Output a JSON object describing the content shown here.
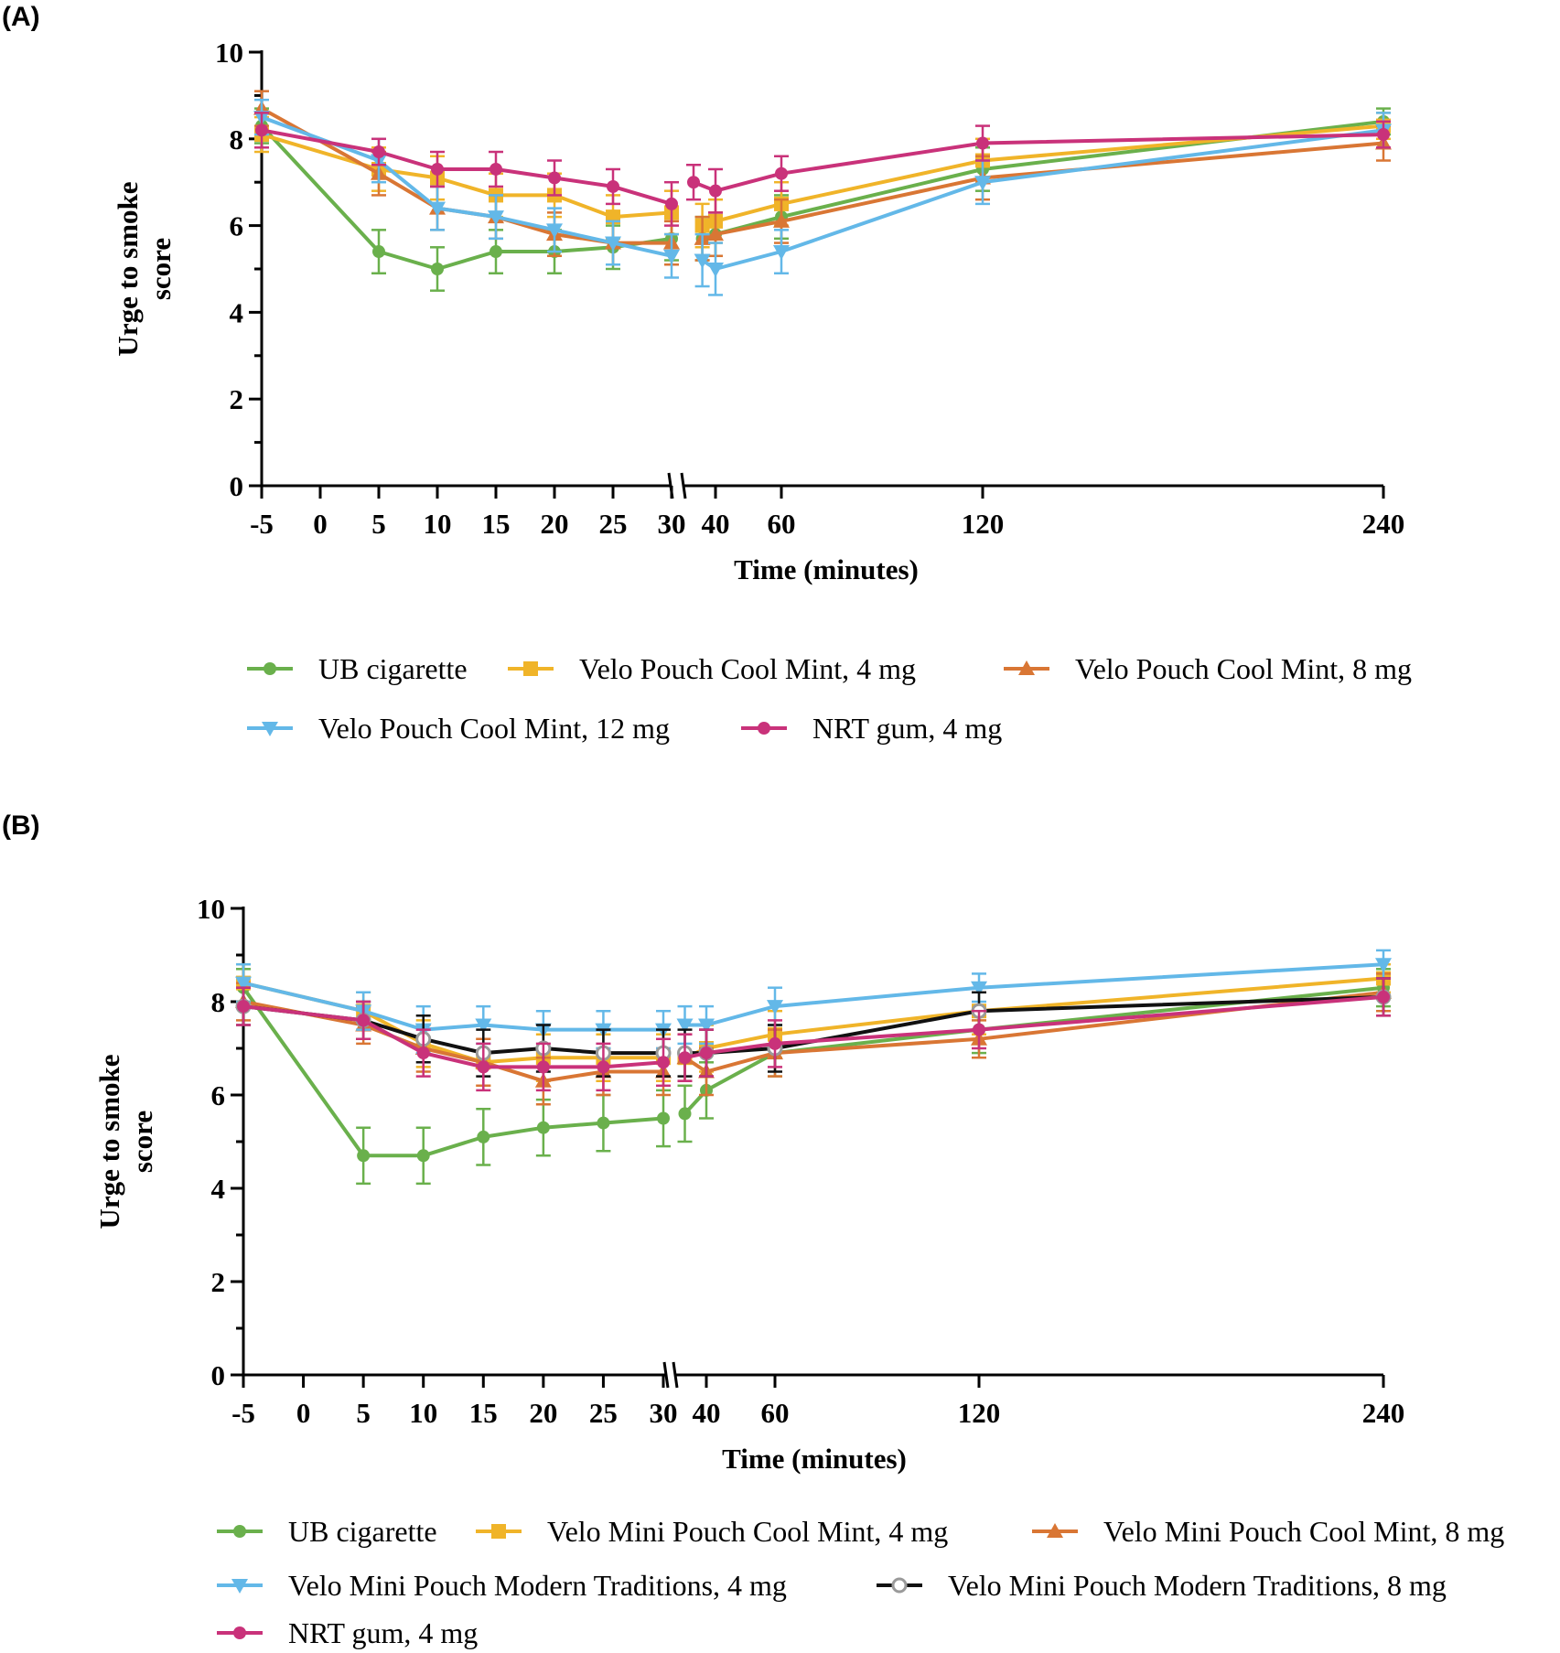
{
  "chart_data": [
    {
      "panel_label": "(A)",
      "type": "line",
      "xlabel": "Time (minutes)",
      "ylabel_lines": [
        "Urge to smoke",
        "score"
      ],
      "ylim": [
        0,
        10
      ],
      "y_ticks": [
        0,
        2,
        4,
        6,
        8,
        10
      ],
      "x_ticks": [
        -5,
        0,
        5,
        10,
        15,
        20,
        25,
        30,
        40,
        60,
        120,
        240
      ],
      "x_ticks_labels": [
        "-5",
        "0",
        "5",
        "10",
        "15",
        "20",
        "25",
        "30",
        "40",
        "60",
        "120",
        "240"
      ],
      "x_axis_break": "between 30 and 40",
      "x_data": [
        -5,
        5,
        10,
        15,
        20,
        25,
        30,
        35,
        37,
        40,
        60,
        120,
        240
      ],
      "series": [
        {
          "name": "UB cigarette",
          "color": "#6ab04c",
          "marker": "circle",
          "values": [
            8.3,
            5.4,
            5.0,
            5.4,
            5.4,
            5.5,
            5.7,
            null,
            5.7,
            5.8,
            6.2,
            7.3,
            8.4
          ],
          "errors": [
            0.4,
            0.5,
            0.5,
            0.5,
            0.5,
            0.5,
            0.5,
            null,
            0.5,
            0.5,
            0.5,
            0.5,
            0.3
          ]
        },
        {
          "name": "Velo Pouch Cool Mint, 4 mg",
          "color": "#f0b429",
          "marker": "square",
          "values": [
            8.1,
            7.3,
            7.1,
            6.7,
            6.7,
            6.2,
            6.3,
            null,
            6.0,
            6.1,
            6.5,
            7.5,
            8.3
          ],
          "errors": [
            0.4,
            0.5,
            0.5,
            0.5,
            0.5,
            0.5,
            0.5,
            null,
            0.5,
            0.5,
            0.5,
            0.5,
            0.3
          ]
        },
        {
          "name": "Velo Pouch Cool Mint, 8 mg",
          "color": "#d97634",
          "marker": "triangle-up",
          "values": [
            8.7,
            7.2,
            6.4,
            6.2,
            5.8,
            5.6,
            5.6,
            null,
            5.7,
            5.8,
            6.1,
            7.1,
            7.9
          ],
          "errors": [
            0.4,
            0.5,
            0.5,
            0.5,
            0.5,
            0.5,
            0.5,
            null,
            0.5,
            0.5,
            0.5,
            0.5,
            0.4
          ]
        },
        {
          "name": "Velo Pouch Cool Mint, 12 mg",
          "color": "#63b8e8",
          "marker": "triangle-down",
          "values": [
            8.5,
            7.5,
            6.4,
            6.2,
            5.9,
            5.6,
            5.3,
            null,
            5.2,
            5.0,
            5.4,
            7.0,
            8.2
          ],
          "errors": [
            0.4,
            0.5,
            0.5,
            0.5,
            0.5,
            0.5,
            0.5,
            null,
            0.6,
            0.6,
            0.5,
            0.5,
            0.4
          ]
        },
        {
          "name": "NRT gum, 4 mg",
          "color": "#c9327a",
          "marker": "circle",
          "values": [
            8.2,
            7.7,
            7.3,
            7.3,
            7.1,
            6.9,
            6.5,
            7.0,
            null,
            6.8,
            7.2,
            7.9,
            8.1
          ],
          "errors": [
            0.4,
            0.3,
            0.4,
            0.4,
            0.4,
            0.4,
            0.5,
            0.4,
            null,
            0.5,
            0.4,
            0.4,
            0.3
          ]
        }
      ]
    },
    {
      "panel_label": "(B)",
      "type": "line",
      "xlabel": "Time (minutes)",
      "ylabel_lines": [
        "Urge to smoke",
        "score"
      ],
      "ylim": [
        0,
        10
      ],
      "y_ticks": [
        0,
        2,
        4,
        6,
        8,
        10
      ],
      "x_ticks": [
        -5,
        0,
        5,
        10,
        15,
        20,
        25,
        30,
        40,
        60,
        120,
        240
      ],
      "x_ticks_labels": [
        "-5",
        "0",
        "5",
        "10",
        "15",
        "20",
        "25",
        "30",
        "40",
        "60",
        "120",
        "240"
      ],
      "x_axis_break": "between 30 and 40",
      "x_data": [
        -5,
        5,
        10,
        15,
        20,
        25,
        30,
        35,
        40,
        60,
        120,
        240
      ],
      "series": [
        {
          "name": "UB cigarette",
          "color": "#6ab04c",
          "marker": "circle",
          "values": [
            8.3,
            4.7,
            4.7,
            5.1,
            5.3,
            5.4,
            5.5,
            5.6,
            6.1,
            6.9,
            7.4,
            8.3
          ],
          "errors": [
            0.4,
            0.6,
            0.6,
            0.6,
            0.6,
            0.6,
            0.6,
            0.6,
            0.6,
            0.5,
            0.5,
            0.4
          ]
        },
        {
          "name": "Velo Mini Pouch Cool Mint, 4 mg",
          "color": "#f0b429",
          "marker": "square",
          "values": [
            8.4,
            7.8,
            7.1,
            6.7,
            6.8,
            6.8,
            6.8,
            6.8,
            7.0,
            7.3,
            7.8,
            8.5
          ],
          "errors": [
            0.4,
            0.4,
            0.5,
            0.5,
            0.5,
            0.5,
            0.5,
            0.5,
            0.5,
            0.5,
            0.5,
            0.3
          ]
        },
        {
          "name": "Velo Mini Pouch Cool Mint, 8 mg",
          "color": "#d97634",
          "marker": "triangle-up",
          "values": [
            8.0,
            7.5,
            7.0,
            6.7,
            6.3,
            6.5,
            6.5,
            6.8,
            6.5,
            6.9,
            7.2,
            8.2
          ],
          "errors": [
            0.4,
            0.4,
            0.5,
            0.5,
            0.5,
            0.5,
            0.5,
            0.5,
            0.5,
            0.5,
            0.4,
            0.4
          ]
        },
        {
          "name": "Velo Mini Pouch Modern Traditions, 4 mg",
          "color": "#63b8e8",
          "marker": "triangle-down",
          "values": [
            8.4,
            7.8,
            7.4,
            7.5,
            7.4,
            7.4,
            7.4,
            7.5,
            7.5,
            7.9,
            8.3,
            8.8
          ],
          "errors": [
            0.4,
            0.4,
            0.5,
            0.4,
            0.4,
            0.4,
            0.4,
            0.4,
            0.4,
            0.4,
            0.3,
            0.3
          ]
        },
        {
          "name": "Velo Mini Pouch Modern Traditions, 8 mg",
          "color": "#111111",
          "marker": "open-circle",
          "values": [
            7.9,
            7.6,
            7.2,
            6.9,
            7.0,
            6.9,
            6.9,
            6.9,
            6.9,
            7.0,
            7.8,
            8.1
          ],
          "errors": [
            0.4,
            0.4,
            0.5,
            0.5,
            0.5,
            0.5,
            0.5,
            0.5,
            0.5,
            0.5,
            0.4,
            0.4
          ]
        },
        {
          "name": "NRT gum, 4 mg",
          "color": "#c9327a",
          "marker": "circle",
          "values": [
            7.9,
            7.6,
            6.9,
            6.6,
            6.6,
            6.6,
            6.7,
            6.8,
            6.9,
            7.1,
            7.4,
            8.1
          ],
          "errors": [
            0.4,
            0.4,
            0.5,
            0.5,
            0.5,
            0.5,
            0.5,
            0.5,
            0.5,
            0.5,
            0.4,
            0.4
          ]
        }
      ]
    }
  ]
}
